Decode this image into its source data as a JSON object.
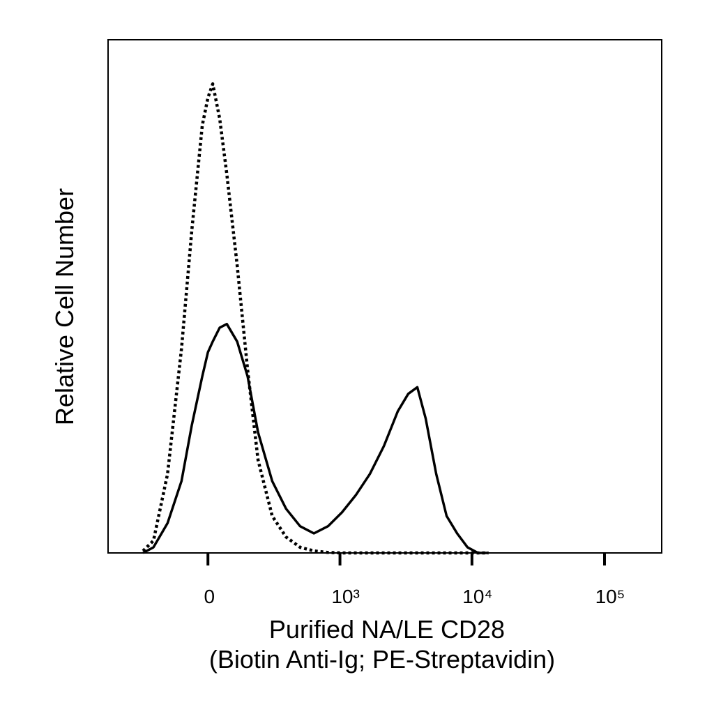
{
  "chart_data": {
    "type": "line",
    "xlabel": [
      "Purified NA/LE CD28",
      "(Biotin Anti-Ig; PE-Streptavidin)"
    ],
    "ylabel": "Relative Cell Number",
    "xscale": "biexponential",
    "xlim": [
      -560,
      270000
    ],
    "xticks": [
      0,
      {
        "value": 1000,
        "label": "10³"
      },
      {
        "value": 10000,
        "label": "10⁴"
      },
      {
        "value": 100000,
        "label": "10⁵"
      }
    ],
    "ylim": [
      0,
      100
    ],
    "x": [
      -282,
      -223,
      -155,
      -97,
      -58,
      -20,
      0,
      17,
      42,
      68,
      108,
      152,
      201,
      278,
      370,
      485,
      626,
      808,
      1036,
      1326,
      1693,
      2160,
      2754,
      3305,
      3870,
      4476,
      5371,
      6440,
      7725,
      9262,
      11118,
      13330
    ],
    "series": [
      {
        "style": "solid",
        "color": "#000000",
        "values": [
          0,
          1.1,
          5.8,
          14,
          24.9,
          34.4,
          39.1,
          41.2,
          43.9,
          44.6,
          41.2,
          34.4,
          23.5,
          14,
          8.6,
          5.2,
          3.8,
          5.2,
          7.9,
          11.3,
          15.4,
          20.8,
          27.6,
          31,
          32.3,
          26.2,
          15.4,
          7.2,
          3.8,
          1.1,
          0,
          0
        ]
      },
      {
        "style": "dotted",
        "color": "#000000",
        "values": [
          0.4,
          2.4,
          15.4,
          39.8,
          62.9,
          83.3,
          88.7,
          91.4,
          84.6,
          73.8,
          56.1,
          35.7,
          18.1,
          7.2,
          3.1,
          1.1,
          0.4,
          0.1,
          0,
          0,
          0,
          0,
          0,
          0,
          0,
          0,
          0,
          0,
          0,
          0,
          0,
          0
        ]
      }
    ]
  }
}
